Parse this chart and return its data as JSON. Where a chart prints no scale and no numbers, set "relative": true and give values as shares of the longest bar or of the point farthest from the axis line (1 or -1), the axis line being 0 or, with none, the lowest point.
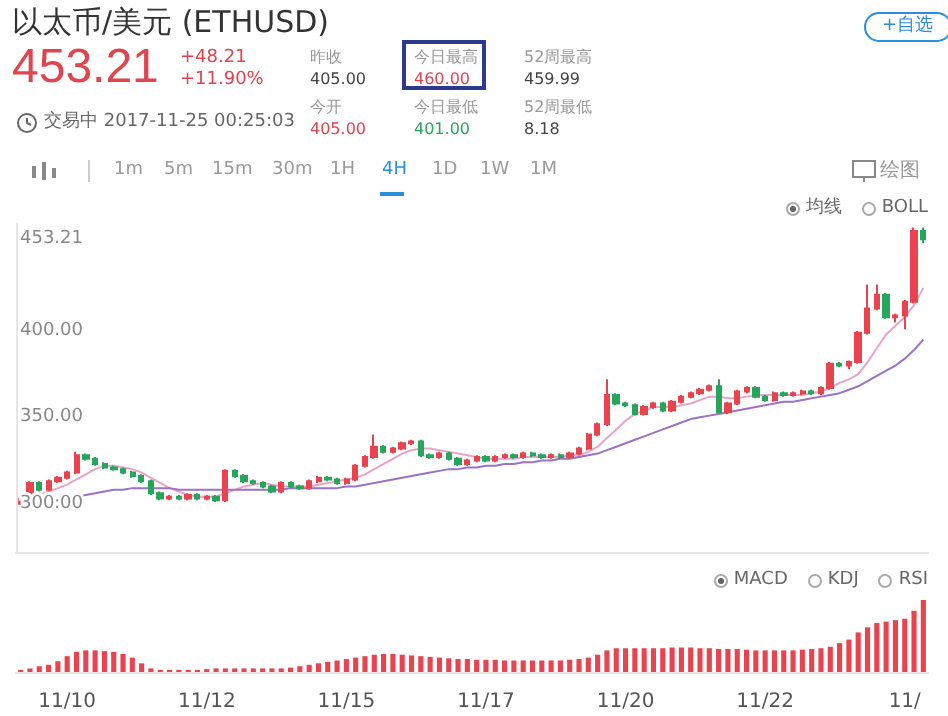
{
  "chart_data": [
    {
      "type": "other",
      "title": "以太币/美元 (ETHUSD)",
      "annotations": [
        "453.21",
        "+48.21",
        "+11.90%",
        "交易中 2017-11-25 00:25:03",
        "昨收",
        "405.00",
        "今日最高",
        "460.00",
        "52周最高",
        "459.99",
        "今开",
        "405.00",
        "今日最低",
        "401.00",
        "52周最低",
        "8.18",
        "+自选",
        "1m",
        "5m",
        "15m",
        "30m",
        "1H",
        "4H",
        "1D",
        "1W",
        "1M",
        "绘图"
      ]
    },
    {
      "type": "candlestick",
      "ylim": [
        272,
        462
      ],
      "yticks": [
        {
          "value": 300,
          "label": "300.00"
        },
        {
          "value": 350,
          "label": "350.00"
        },
        {
          "value": 400,
          "label": "400.00"
        },
        {
          "value": 453.21,
          "label": "453.21"
        }
      ],
      "annotations": [
        "均线",
        "BOLL"
      ],
      "categories": [
        null,
        null,
        null,
        null,
        null,
        null,
        null,
        null,
        null,
        null,
        null,
        null,
        null,
        null,
        null,
        null,
        null,
        null,
        null,
        null,
        null,
        null,
        null,
        null,
        null,
        null,
        null,
        null,
        null,
        null,
        null,
        null,
        null,
        null,
        null,
        null,
        null,
        null,
        null,
        null,
        null,
        null,
        null,
        null,
        null,
        null,
        null,
        null,
        null,
        null,
        null,
        null,
        null,
        null,
        null,
        null,
        null,
        null,
        null,
        null,
        null,
        null,
        null,
        null,
        null,
        null,
        null,
        null,
        null,
        null,
        null,
        null,
        null,
        null,
        null,
        null,
        null,
        null,
        null,
        null,
        null,
        null,
        null,
        null,
        null,
        null,
        null,
        null,
        null,
        null,
        null,
        null,
        null,
        null,
        null,
        null,
        null,
        null
      ],
      "series": [
        {
          "type": "candlestick",
          "colors": [
            "#e8434e",
            "#e8434e",
            "#26a65b",
            "#e8434e",
            "#e8434e",
            "#e8434e",
            "#e8434e",
            "#26a65b",
            "#26a65b",
            "#26a65b",
            "#26a65b",
            "#26a65b",
            "#26a65b",
            "#26a65b",
            "#26a65b",
            "#26a65b",
            "#e8434e",
            "#26a65b",
            "#e8434e",
            "#26a65b",
            "#e8434e",
            "#26a65b",
            "#e8434e",
            "#26a65b",
            "#26a65b",
            "#26a65b",
            "#26a65b",
            "#26a65b",
            "#e8434e",
            "#26a65b",
            "#26a65b",
            "#e8434e",
            "#e8434e",
            "#26a65b",
            "#26a65b",
            "#e8434e",
            "#e8434e",
            "#e8434e",
            "#e8434e",
            "#26a65b",
            "#e8434e",
            "#e8434e",
            "#e8434e",
            "#26a65b",
            "#26a65b",
            "#e8434e",
            "#26a65b",
            "#26a65b",
            "#e8434e",
            "#e8434e",
            "#26a65b",
            "#e8434e",
            "#e8434e",
            "#26a65b",
            "#e8434e",
            "#26a65b",
            "#26a65b",
            "#e8434e",
            "#26a65b",
            "#e8434e",
            "#e8434e",
            "#e8434e",
            "#e8434e",
            "#e8434e",
            "#26a65b",
            "#26a65b",
            "#26a65b",
            "#e8434e",
            "#e8434e",
            "#26a65b",
            "#e8434e",
            "#e8434e",
            "#e8434e",
            "#e8434e",
            "#e8434e",
            "#26a65b",
            "#e8434e",
            "#e8434e",
            "#e8434e",
            "#26a65b",
            "#26a65b",
            "#e8434e",
            "#26a65b",
            "#e8434e",
            "#e8434e",
            "#26a65b",
            "#e8434e",
            "#e8434e",
            "#26a65b",
            "#e8434e",
            "#e8434e",
            "#e8434e",
            "#e8434e",
            "#26a65b",
            "#e8434e",
            "#e8434e",
            "#e8434e",
            "#26a65b"
          ],
          "ohlc": [
            [
              300,
              304,
              299,
              303
            ],
            [
              303,
              313,
              302,
              312
            ],
            [
              312,
              313,
              307,
              308
            ],
            [
              308,
              314,
              307,
              313
            ],
            [
              313,
              316,
              312,
              315
            ],
            [
              315,
              319,
              314,
              318
            ],
            [
              318,
              330,
              317,
              328
            ],
            [
              328,
              329,
              325,
              326
            ],
            [
              326,
              327,
              322,
              323
            ],
            [
              323,
              324,
              320,
              321
            ],
            [
              321,
              322,
              319,
              320
            ],
            [
              320,
              321,
              317,
              318
            ],
            [
              318,
              319,
              315,
              316
            ],
            [
              316,
              317,
              312,
              313
            ],
            [
              313,
              314,
              305,
              306
            ],
            [
              306,
              307,
              302,
              303
            ],
            [
              303,
              305,
              302,
              304
            ],
            [
              304,
              305,
              302,
              303
            ],
            [
              303,
              306,
              302,
              305
            ],
            [
              305,
              306,
              302,
              303
            ],
            [
              303,
              305,
              302,
              304
            ],
            [
              304,
              305,
              301,
              302
            ],
            [
              302,
              320,
              301,
              319
            ],
            [
              319,
              320,
              315,
              316
            ],
            [
              316,
              317,
              312,
              313
            ],
            [
              313,
              314,
              311,
              312
            ],
            [
              312,
              313,
              309,
              310
            ],
            [
              310,
              311,
              306,
              307
            ],
            [
              307,
              313,
              306,
              312
            ],
            [
              312,
              313,
              309,
              310
            ],
            [
              310,
              311,
              308,
              309
            ],
            [
              309,
              314,
              308,
              313
            ],
            [
              313,
              316,
              312,
              315
            ],
            [
              315,
              316,
              313,
              314
            ],
            [
              314,
              315,
              311,
              312
            ],
            [
              312,
              315,
              311,
              314
            ],
            [
              314,
              323,
              313,
              322
            ],
            [
              322,
              328,
              321,
              327
            ],
            [
              327,
              340,
              326,
              333
            ],
            [
              333,
              334,
              329,
              330
            ],
            [
              330,
              333,
              329,
              332
            ],
            [
              332,
              336,
              331,
              335
            ],
            [
              335,
              337,
              334,
              336
            ],
            [
              336,
              337,
              327,
              328
            ],
            [
              328,
              329,
              326,
              327
            ],
            [
              327,
              330,
              326,
              329
            ],
            [
              329,
              330,
              325,
              326
            ],
            [
              326,
              327,
              322,
              323
            ],
            [
              323,
              326,
              322,
              325
            ],
            [
              325,
              328,
              324,
              327
            ],
            [
              327,
              328,
              324,
              325
            ],
            [
              325,
              328,
              324,
              327
            ],
            [
              327,
              329,
              326,
              328
            ],
            [
              328,
              329,
              326,
              327
            ],
            [
              327,
              330,
              326,
              329
            ],
            [
              329,
              330,
              327,
              328
            ],
            [
              328,
              329,
              326,
              327
            ],
            [
              327,
              329,
              326,
              328
            ],
            [
              328,
              329,
              326,
              327
            ],
            [
              327,
              330,
              326,
              329
            ],
            [
              329,
              333,
              328,
              332
            ],
            [
              332,
              341,
              331,
              340
            ],
            [
              340,
              347,
              339,
              346
            ],
            [
              346,
              372,
              345,
              363
            ],
            [
              363,
              364,
              357,
              358
            ],
            [
              358,
              359,
              356,
              357
            ],
            [
              357,
              358,
              351,
              352
            ],
            [
              352,
              357,
              351,
              356
            ],
            [
              356,
              359,
              355,
              358
            ],
            [
              358,
              359,
              353,
              354
            ],
            [
              354,
              360,
              353,
              359
            ],
            [
              359,
              363,
              358,
              362
            ],
            [
              362,
              365,
              361,
              364
            ],
            [
              364,
              367,
              363,
              366
            ],
            [
              366,
              369,
              365,
              368
            ],
            [
              368,
              372,
              352,
              353
            ],
            [
              353,
              359,
              352,
              358
            ],
            [
              358,
              366,
              357,
              365
            ],
            [
              365,
              368,
              364,
              367
            ],
            [
              367,
              368,
              361,
              362
            ],
            [
              362,
              363,
              359,
              360
            ],
            [
              360,
              365,
              359,
              364
            ],
            [
              364,
              365,
              362,
              363
            ],
            [
              363,
              365,
              362,
              364
            ],
            [
              364,
              366,
              363,
              365
            ],
            [
              365,
              366,
              363,
              364
            ],
            [
              364,
              368,
              363,
              367
            ],
            [
              367,
              382,
              366,
              381
            ],
            [
              381,
              382,
              379,
              380
            ],
            [
              380,
              383,
              378,
              382
            ],
            [
              382,
              400,
              381,
              399
            ],
            [
              399,
              427,
              398,
              413
            ],
            [
              413,
              427,
              412,
              421
            ],
            [
              421,
              422,
              407,
              408
            ],
            [
              408,
              410,
              405,
              409
            ],
            [
              409,
              418,
              401,
              417
            ],
            [
              417,
              460,
              416,
              458
            ],
            [
              458,
              460,
              451,
              453.21
            ]
          ]
        },
        {
          "type": "line",
          "color": "#e9a3c9",
          "values": [
            301,
            303,
            305,
            307,
            309,
            311,
            314,
            317,
            320,
            322,
            322,
            321,
            320,
            318,
            315,
            312,
            309,
            307,
            305,
            304,
            304,
            304,
            306,
            308,
            310,
            311,
            312,
            311,
            310,
            310,
            310,
            310,
            311,
            312,
            313,
            314,
            315,
            317,
            320,
            323,
            326,
            329,
            331,
            332,
            332,
            331,
            330,
            329,
            328,
            327,
            326,
            326,
            326,
            326,
            327,
            327,
            327,
            327,
            327,
            328,
            328,
            330,
            333,
            338,
            343,
            348,
            352,
            354,
            356,
            356,
            356,
            357,
            358,
            360,
            362,
            362,
            361,
            361,
            362,
            363,
            363,
            363,
            363,
            363,
            363,
            364,
            365,
            367,
            370,
            372,
            375,
            382,
            390,
            398,
            403,
            408,
            415,
            425
          ]
        },
        {
          "type": "line",
          "color": "#9b72c4",
          "values": [
            300,
            300,
            301,
            301,
            302,
            303,
            304,
            305,
            306,
            307,
            308,
            308,
            309,
            309,
            309,
            309,
            309,
            308,
            308,
            308,
            308,
            308,
            308,
            308,
            308,
            308,
            308,
            308,
            308,
            309,
            309,
            309,
            309,
            309,
            309,
            310,
            310,
            311,
            312,
            313,
            314,
            315,
            316,
            317,
            318,
            319,
            320,
            320,
            321,
            321,
            322,
            322,
            323,
            323,
            324,
            324,
            325,
            325,
            326,
            326,
            327,
            328,
            329,
            331,
            333,
            335,
            337,
            339,
            341,
            343,
            345,
            347,
            349,
            350,
            351,
            352,
            353,
            354,
            355,
            356,
            357,
            358,
            359,
            359,
            360,
            361,
            362,
            363,
            364,
            366,
            368,
            371,
            374,
            377,
            380,
            384,
            389,
            395
          ]
        }
      ]
    },
    {
      "type": "bar",
      "relative": true,
      "tick_labels": "x",
      "color": "#e8434e",
      "annotations": [
        "MACD",
        "KDJ",
        "RSI"
      ],
      "categories": [
        null,
        null,
        null,
        null,
        null,
        "11/10",
        null,
        null,
        null,
        null,
        null,
        null,
        null,
        null,
        null,
        null,
        null,
        null,
        null,
        null,
        "11/12",
        null,
        null,
        null,
        null,
        null,
        null,
        null,
        null,
        null,
        null,
        null,
        null,
        null,
        null,
        "11/15",
        null,
        null,
        null,
        null,
        null,
        null,
        null,
        null,
        null,
        null,
        null,
        null,
        null,
        null,
        "11/17",
        null,
        null,
        null,
        null,
        null,
        null,
        null,
        null,
        null,
        null,
        null,
        null,
        null,
        null,
        "11/20",
        null,
        null,
        null,
        null,
        null,
        null,
        null,
        null,
        null,
        null,
        null,
        null,
        null,
        null,
        "11/22",
        null,
        null,
        null,
        null,
        null,
        null,
        null,
        null,
        null,
        null,
        null,
        null,
        null,
        null,
        "11/",
        null,
        null
      ],
      "values": [
        0.03,
        0.05,
        0.08,
        0.1,
        0.15,
        0.22,
        0.28,
        0.3,
        0.3,
        0.29,
        0.28,
        0.25,
        0.2,
        0.12,
        0.05,
        0.03,
        0.03,
        0.03,
        0.03,
        0.03,
        0.04,
        0.05,
        0.05,
        0.05,
        0.05,
        0.05,
        0.05,
        0.05,
        0.05,
        0.06,
        0.08,
        0.1,
        0.12,
        0.14,
        0.16,
        0.18,
        0.2,
        0.22,
        0.24,
        0.25,
        0.25,
        0.24,
        0.23,
        0.22,
        0.21,
        0.2,
        0.19,
        0.18,
        0.18,
        0.17,
        0.17,
        0.17,
        0.16,
        0.16,
        0.16,
        0.16,
        0.16,
        0.16,
        0.16,
        0.17,
        0.18,
        0.2,
        0.24,
        0.3,
        0.33,
        0.33,
        0.33,
        0.33,
        0.33,
        0.33,
        0.34,
        0.34,
        0.34,
        0.33,
        0.33,
        0.32,
        0.32,
        0.32,
        0.31,
        0.3,
        0.3,
        0.3,
        0.3,
        0.3,
        0.31,
        0.32,
        0.33,
        0.35,
        0.4,
        0.45,
        0.55,
        0.62,
        0.68,
        0.7,
        0.72,
        0.74,
        0.85,
        1
      ]
    }
  ]
}
